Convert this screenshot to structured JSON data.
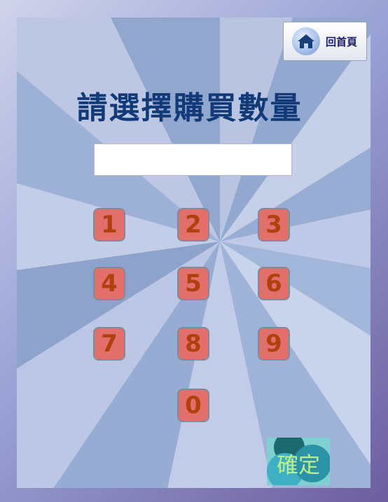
{
  "home": {
    "label": "回首頁",
    "icon": "home-icon"
  },
  "title": "請選擇購買數量",
  "quantity": {
    "value": "",
    "placeholder": ""
  },
  "keypad": {
    "k1": "1",
    "k2": "2",
    "k3": "3",
    "k4": "4",
    "k5": "5",
    "k6": "6",
    "k7": "7",
    "k8": "8",
    "k9": "9",
    "k0": "0"
  },
  "confirm": {
    "label": "確定"
  },
  "colors": {
    "key_bg": "#e36f6a",
    "key_text": "#b0410e",
    "title": "#123a78",
    "confirm_text": "#b9ef8e"
  }
}
